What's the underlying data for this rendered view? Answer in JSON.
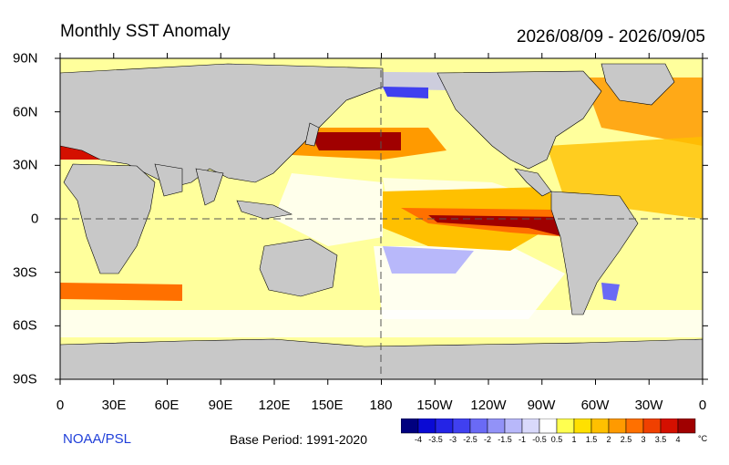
{
  "header": {
    "title": "Monthly SST Anomaly",
    "date_range": "2026/08/09 - 2026/09/05"
  },
  "footer": {
    "credit": "NOAA/PSL",
    "base_period": "Base Period: 1991-2020"
  },
  "axes": {
    "lat_labels": [
      "90N",
      "60N",
      "30N",
      "0",
      "30S",
      "60S",
      "90S"
    ],
    "lon_labels": [
      "0",
      "30E",
      "60E",
      "90E",
      "120E",
      "150E",
      "180",
      "150W",
      "120W",
      "90W",
      "60W",
      "30W",
      "0"
    ]
  },
  "colorbar": {
    "labels": [
      "-4",
      "-3.5",
      "-3",
      "-2.5",
      "-2",
      "-1.5",
      "-1",
      "-0.5",
      "0.5",
      "1",
      "1.5",
      "2",
      "2.5",
      "3",
      "3.5",
      "4"
    ],
    "unit": "°C",
    "colors": [
      "#00007f",
      "#0a0ad4",
      "#2424e6",
      "#4040f0",
      "#6a6af5",
      "#9292f7",
      "#b8b8fa",
      "#d9d9fb",
      "#ffffff",
      "#ffff50",
      "#ffe000",
      "#ffc000",
      "#ff9a00",
      "#ff7000",
      "#f04000",
      "#d41000",
      "#a00000"
    ]
  },
  "colors": {
    "land": "#c8c8c8",
    "ocean_neutral": "#ffffff",
    "warm": "#ffff60",
    "hot": "#ff8000",
    "very_hot": "#b00000",
    "cold": "#9090ff",
    "credit_blue": "#1f3fd9"
  }
}
